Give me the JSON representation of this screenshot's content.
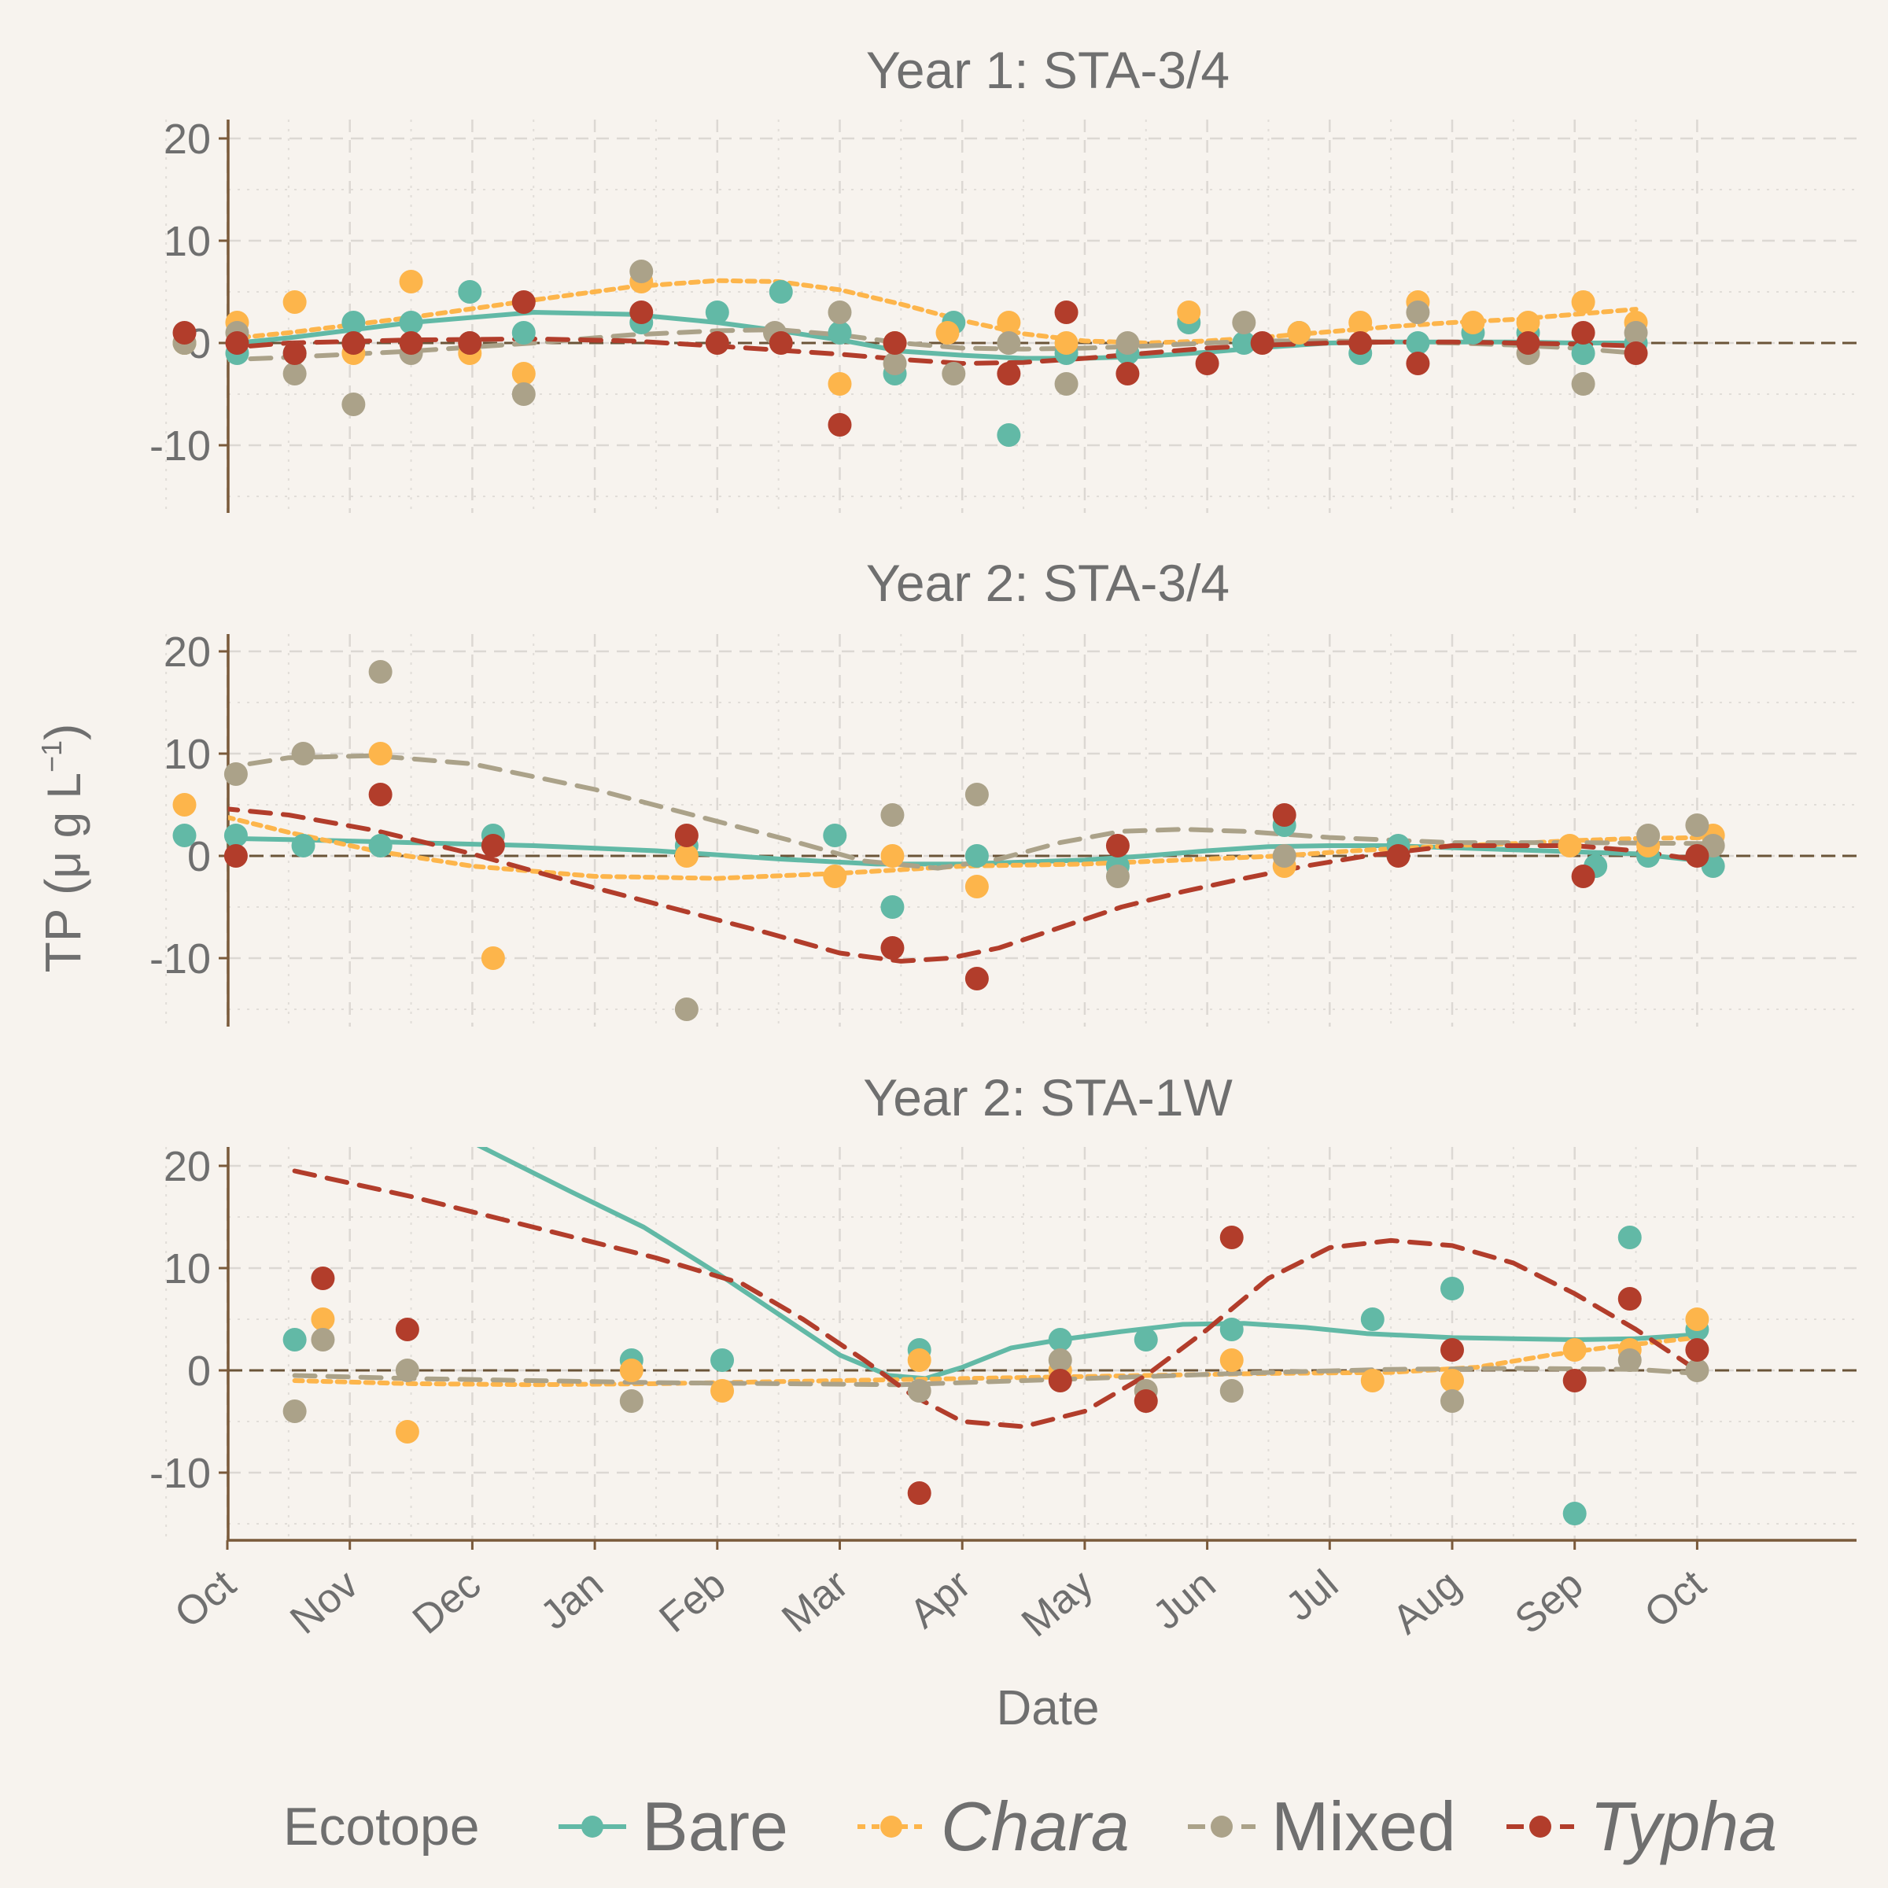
{
  "chart_data": {
    "type": "scatter",
    "xlabel": "Date",
    "ylabel_main": "TP (",
    "ylabel_unit": "μ g L",
    "ylabel_exp": "−1",
    "ylabel_close": ")",
    "legend_title": "Ecotope",
    "legend_position": "bottom",
    "grid": true,
    "month_ticks": [
      "Oct",
      "Nov",
      "Dec",
      "Jan",
      "Feb",
      "Mar",
      "Apr",
      "May",
      "Jun",
      "Jul",
      "Aug",
      "Sep",
      "Oct"
    ],
    "month_tick_index": [
      0,
      1,
      2,
      3,
      4,
      5,
      6,
      7,
      8,
      9,
      10,
      11,
      12
    ],
    "ylim": [
      -17,
      22
    ],
    "yticks": [
      -10,
      0,
      10,
      20
    ],
    "ecotopes": [
      {
        "name": "Bare",
        "italic": false,
        "color": "#62b9a6",
        "dash": "solid"
      },
      {
        "name": "Chara",
        "italic": true,
        "color": "#fdb54b",
        "dash": "dotted"
      },
      {
        "name": "Mixed",
        "italic": false,
        "color": "#aba289",
        "dash": "dashed"
      },
      {
        "name": "Typha",
        "italic": true,
        "color": "#b23d2b",
        "dash": "dashed"
      }
    ],
    "panels": [
      {
        "title": "Year 1: STA-3/4",
        "series": [
          {
            "name": "Bare",
            "x": [
              -0.35,
              0.08,
              0.55,
              1.03,
              1.5,
              1.98,
              2.42,
              3.38,
              4.0,
              4.52,
              5.0,
              5.45,
              5.93,
              6.38,
              6.85,
              7.35,
              7.85,
              8.3,
              8.75,
              9.25,
              9.72,
              10.17,
              10.62,
              11.07,
              11.5
            ],
            "y": [
              0,
              -1,
              -1,
              2,
              2,
              5,
              1,
              2,
              3,
              5,
              1,
              -3,
              2,
              -9,
              -1,
              -1,
              2,
              0,
              1,
              -1,
              0,
              1,
              1,
              -1,
              0
            ],
            "trend_x": [
              -0.35,
              0.5,
              1.5,
              2.5,
              3.3,
              4,
              4.5,
              5,
              5.5,
              6,
              6.5,
              7,
              7.5,
              8,
              8.5,
              9,
              9.5,
              10,
              10.5,
              11,
              11.5
            ],
            "trend_y": [
              -0.5,
              0.5,
              2,
              3,
              2.8,
              2,
              1.2,
              0.3,
              -0.8,
              -1.2,
              -1.5,
              -1.5,
              -1.3,
              -0.9,
              -0.4,
              0,
              0.1,
              0.1,
              0.1,
              0,
              0
            ]
          },
          {
            "name": "Chara",
            "x": [
              -0.35,
              0.08,
              0.55,
              1.03,
              1.5,
              1.98,
              2.42,
              3.38,
              5.0,
              5.45,
              5.88,
              6.38,
              6.85,
              7.85,
              8.75,
              9.25,
              9.72,
              10.17,
              10.62,
              11.07,
              11.5
            ],
            "y": [
              0,
              2,
              4,
              -1,
              6,
              -1,
              -3,
              6,
              -4,
              0,
              1,
              2,
              0,
              3,
              1,
              2,
              4,
              2,
              2,
              4,
              2
            ],
            "trend_x": [
              -0.35,
              0.5,
              1.5,
              2.5,
              3.3,
              4,
              4.5,
              5,
              5.5,
              6,
              6.5,
              7,
              7.5,
              8,
              8.5,
              9,
              9.5,
              10,
              10.5,
              11,
              11.5
            ],
            "trend_y": [
              0,
              1,
              2.5,
              4.2,
              5.5,
              6.1,
              6,
              5.2,
              3.8,
              2.2,
              0.9,
              0.2,
              0,
              0.2,
              0.6,
              1.1,
              1.6,
              2,
              2.3,
              2.8,
              3.3
            ]
          },
          {
            "name": "Mixed",
            "x": [
              -0.35,
              0.08,
              0.55,
              1.03,
              1.5,
              1.98,
              2.42,
              3.38,
              4.47,
              5.0,
              5.45,
              5.93,
              6.38,
              6.85,
              7.35,
              8.3,
              9.72,
              10.62,
              11.07,
              11.5
            ],
            "y": [
              0,
              1,
              -3,
              -6,
              -1,
              0,
              -5,
              7,
              1,
              3,
              -2,
              -3,
              0,
              -4,
              0,
              2,
              3,
              -1,
              -4,
              1
            ],
            "trend_x": [
              -0.35,
              0.5,
              1.5,
              2.5,
              3.3,
              4,
              4.5,
              5,
              5.5,
              6,
              6.5,
              7,
              7.5,
              8,
              8.5,
              9,
              9.5,
              10,
              10.5,
              11,
              11.5
            ],
            "trend_y": [
              -1.8,
              -1.4,
              -0.8,
              0,
              0.8,
              1.2,
              1.3,
              0.8,
              0,
              -0.5,
              -0.6,
              -0.5,
              -0.3,
              0,
              0.2,
              0.2,
              0.1,
              0,
              -0.2,
              -0.5,
              -1
            ]
          },
          {
            "name": "Typha",
            "x": [
              -0.35,
              0.08,
              0.55,
              1.03,
              1.5,
              1.98,
              2.42,
              3.38,
              4.0,
              4.52,
              5.0,
              5.45,
              6.38,
              6.85,
              7.35,
              8.0,
              8.45,
              9.25,
              9.72,
              10.62,
              11.07,
              11.5
            ],
            "y": [
              1,
              0,
              -1,
              0,
              0,
              0,
              4,
              3,
              0,
              0,
              -8,
              0,
              -3,
              3,
              -3,
              -2,
              0,
              0,
              -2,
              0,
              1,
              -1
            ],
            "trend_x": [
              -0.35,
              0.5,
              1.5,
              2.5,
              3.3,
              4,
              4.5,
              5,
              5.5,
              6,
              6.5,
              7,
              7.5,
              8,
              8.5,
              9,
              9.5,
              10,
              10.5,
              11,
              11.5
            ],
            "trend_y": [
              -0.8,
              0,
              0.3,
              0.4,
              0.2,
              -0.3,
              -0.7,
              -1.1,
              -1.6,
              -2,
              -1.9,
              -1.5,
              -1,
              -0.5,
              -0.2,
              0,
              0.1,
              0.1,
              0,
              -0.1,
              -0.3
            ]
          }
        ]
      },
      {
        "title": "Year 2: STA-3/4",
        "series": [
          {
            "name": "Bare",
            "x": [
              -0.35,
              0.07,
              0.62,
              1.25,
              2.17,
              3.75,
              4.96,
              5.43,
              6.12,
              7.27,
              8.63,
              9.56,
              11.17,
              11.6,
              12.13
            ],
            "y": [
              2,
              2,
              1,
              1,
              2,
              1,
              2,
              -5,
              0,
              -1,
              3,
              1,
              -1,
              0,
              -1
            ],
            "trend_x": [
              -0.35,
              0.5,
              1.5,
              2.5,
              3.5,
              4.5,
              5.3,
              6,
              6.5,
              7,
              7.5,
              8,
              8.5,
              9,
              9.5,
              10,
              10.5,
              11,
              11.5,
              12.13
            ],
            "trend_y": [
              1.8,
              1.6,
              1.3,
              1,
              0.5,
              -0.3,
              -0.8,
              -0.8,
              -0.6,
              -0.4,
              0,
              0.5,
              0.9,
              1,
              1,
              0.8,
              0.6,
              0.4,
              0.2,
              -0.6
            ]
          },
          {
            "name": "Chara",
            "x": [
              -0.35,
              1.25,
              2.17,
              3.75,
              4.96,
              5.43,
              6.12,
              8.63,
              10.96,
              11.6,
              12.13
            ],
            "y": [
              5,
              10,
              -10,
              0,
              -2,
              0,
              -3,
              -1,
              1,
              1,
              2
            ],
            "trend_x": [
              -0.35,
              0.5,
              1.2,
              2,
              3,
              4,
              5,
              6,
              7,
              8,
              8.6,
              9.2,
              10,
              10.5,
              11,
              11.5,
              12.13
            ],
            "trend_y": [
              4.8,
              2.3,
              0.5,
              -1,
              -2,
              -2.2,
              -1.7,
              -1,
              -0.8,
              -0.3,
              0,
              0.5,
              1,
              1.2,
              1.5,
              1.7,
              1.8
            ]
          },
          {
            "name": "Mixed",
            "x": [
              0.07,
              0.62,
              1.25,
              3.75,
              5.43,
              6.12,
              7.27,
              8.63,
              11.6,
              12.0,
              12.13
            ],
            "y": [
              8,
              10,
              18,
              -15,
              4,
              6,
              -2,
              0,
              2,
              3,
              1
            ],
            "trend_x": [
              -0.35,
              0.5,
              1.2,
              2,
              3,
              3.8,
              4.6,
              5.2,
              5.8,
              6.3,
              6.8,
              7.3,
              7.8,
              8.3,
              9,
              10,
              11,
              12.13
            ],
            "trend_y": [
              8,
              9.6,
              9.8,
              9,
              6.5,
              4,
              1.5,
              -0.5,
              -1.2,
              -0.3,
              1.3,
              2.4,
              2.6,
              2.4,
              1.8,
              1.3,
              1.3,
              1.2
            ]
          },
          {
            "name": "Typha",
            "x": [
              0.07,
              1.25,
              2.17,
              3.75,
              5.43,
              6.12,
              7.27,
              8.63,
              9.56,
              11.07,
              12.0
            ],
            "y": [
              0,
              6,
              1,
              2,
              -9,
              -12,
              1,
              4,
              0,
              -2,
              0
            ],
            "trend_x": [
              -0.35,
              0.5,
              1.2,
              2,
              2.8,
              3.6,
              4.4,
              5,
              5.5,
              5.9,
              6.3,
              6.8,
              7.3,
              7.8,
              8.3,
              8.8,
              9.3,
              10,
              11,
              11.5,
              12.13
            ],
            "trend_y": [
              5,
              4,
              2.5,
              0.2,
              -2.5,
              -5,
              -7.5,
              -9.5,
              -10.3,
              -10,
              -9,
              -7,
              -5,
              -3.5,
              -2.2,
              -1,
              0,
              1,
              1,
              0.5,
              -0.6
            ]
          }
        ]
      },
      {
        "title": "Year 2: STA-1W",
        "series": [
          {
            "name": "Bare",
            "x": [
              0.55,
              3.3,
              4.04,
              5.65,
              6.8,
              7.5,
              8.2,
              9.35,
              10.0,
              11.0,
              11.45,
              12.0
            ],
            "y": [
              3,
              1,
              1,
              2,
              3,
              3,
              4,
              5,
              8,
              -14,
              13,
              4
            ],
            "trend_x": [
              2.05,
              2.8,
              3.4,
              4,
              4.5,
              5,
              5.4,
              5.7,
              6,
              6.4,
              6.8,
              7.3,
              7.8,
              8.3,
              8.8,
              9.3,
              10,
              10.5,
              11,
              11.5,
              12
            ],
            "trend_y": [
              22,
              17.5,
              14,
              9.5,
              5.5,
              1.5,
              -0.5,
              -0.8,
              0.3,
              2.2,
              3,
              3.8,
              4.5,
              4.6,
              4.2,
              3.6,
              3.2,
              3.1,
              3,
              3.1,
              3.5
            ]
          },
          {
            "name": "Chara",
            "x": [
              0.78,
              1.47,
              3.3,
              4.04,
              5.65,
              6.8,
              8.2,
              9.35,
              10.0,
              11.0,
              11.45,
              12.0
            ],
            "y": [
              5,
              -6,
              0,
              -2,
              1,
              0,
              1,
              -1,
              -1,
              2,
              2,
              5
            ],
            "trend_x": [
              0.55,
              1.5,
              2.5,
              3.5,
              4.5,
              5.5,
              6.5,
              7.5,
              8.5,
              9.5,
              10.2,
              10.8,
              11.3,
              12
            ],
            "trend_y": [
              -1,
              -1.3,
              -1.4,
              -1.3,
              -1.1,
              -0.9,
              -0.7,
              -0.5,
              -0.3,
              -0.2,
              0.3,
              1.5,
              2.3,
              3.2
            ]
          },
          {
            "name": "Mixed",
            "x": [
              0.55,
              0.78,
              1.47,
              3.3,
              5.65,
              6.8,
              7.5,
              8.2,
              10.0,
              11.45,
              12.0
            ],
            "y": [
              -4,
              3,
              0,
              -3,
              -2,
              1,
              -2,
              -2,
              -3,
              1,
              0
            ],
            "trend_x": [
              0.55,
              1.5,
              2.5,
              3.5,
              4.5,
              5.5,
              6.5,
              7.5,
              8.5,
              9.5,
              10.5,
              11.5,
              12
            ],
            "trend_y": [
              -0.5,
              -0.8,
              -1,
              -1.2,
              -1.3,
              -1.4,
              -1,
              -0.6,
              -0.2,
              0.1,
              0.2,
              0.1,
              -0.3
            ]
          },
          {
            "name": "Typha",
            "x": [
              0.78,
              1.47,
              5.65,
              6.8,
              7.5,
              8.2,
              10.0,
              11.0,
              11.45,
              12.0
            ],
            "y": [
              9,
              4,
              -12,
              -1,
              -3,
              13,
              2,
              -1,
              7,
              2
            ],
            "trend_x": [
              0.55,
              1.5,
              2.5,
              3.5,
              4.2,
              4.7,
              5.2,
              5.6,
              6,
              6.5,
              7,
              7.5,
              8,
              8.5,
              9,
              9.5,
              10,
              10.5,
              11,
              11.5,
              12
            ],
            "trend_y": [
              19.5,
              17,
              14,
              11,
              8.5,
              5,
              1,
              -2.5,
              -5,
              -5.5,
              -4,
              -0.5,
              4,
              9,
              12,
              12.7,
              12.2,
              10.5,
              7.5,
              4,
              0
            ]
          }
        ]
      }
    ]
  }
}
